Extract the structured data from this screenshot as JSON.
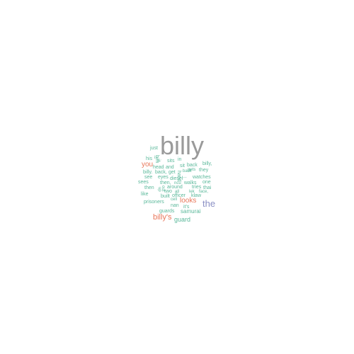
{
  "colors": {
    "gray": "#9a9a9a",
    "orange": "#e8775a",
    "purple": "#8a8fc4",
    "green": "#5ab89a"
  },
  "words": [
    {
      "text": "billy",
      "color": "gray"
    },
    {
      "text": "the",
      "color": "purple"
    },
    {
      "text": "billy's",
      "color": "orange"
    },
    {
      "text": "looks",
      "color": "orange"
    },
    {
      "text": "you",
      "color": "orange"
    },
    {
      "text": "guard",
      "color": "green"
    },
    {
      "text": "just",
      "color": "green"
    },
    {
      "text": "him",
      "color": "green"
    },
    {
      "text": "his",
      "color": "green"
    },
    {
      "text": "it",
      "color": "green"
    },
    {
      "text": "sits",
      "color": "green"
    },
    {
      "text": "in",
      "color": "green"
    },
    {
      "text": "head",
      "color": "green"
    },
    {
      "text": "and",
      "color": "green"
    },
    {
      "text": "sit",
      "color": "green"
    },
    {
      "text": "back",
      "color": "green"
    },
    {
      "text": "billy,",
      "color": "green"
    },
    {
      "text": "they",
      "color": "green"
    },
    {
      "text": "billy.",
      "color": "green"
    },
    {
      "text": "back,",
      "color": "green"
    },
    {
      "text": "gets",
      "color": "green"
    },
    {
      "text": "get",
      "color": "green"
    },
    {
      "text": "see",
      "color": "green"
    },
    {
      "text": "eyes",
      "color": "green"
    },
    {
      "text": "hand",
      "color": "green"
    },
    {
      "text": "diesel",
      "color": "green"
    },
    {
      "text": "...",
      "color": "green"
    },
    {
      "text": "watches",
      "color": "green"
    },
    {
      "text": "sees",
      "color": "green"
    },
    {
      "text": "then,",
      "color": "green"
    },
    {
      "text": "ncu",
      "color": "green"
    },
    {
      "text": "walks",
      "color": "green"
    },
    {
      "text": "one",
      "color": "green"
    },
    {
      "text": "then",
      "color": "green"
    },
    {
      "text": "around",
      "color": "green"
    },
    {
      "text": "tries",
      "color": "green"
    },
    {
      "text": "thai",
      "color": "green"
    },
    {
      "text": "like",
      "color": "green"
    },
    {
      "text": "two",
      "color": "green"
    },
    {
      "text": "all",
      "color": "green"
    },
    {
      "text": "lek",
      "color": "green"
    },
    {
      "text": "face,",
      "color": "green"
    },
    {
      "text": "built",
      "color": "green"
    },
    {
      "text": "officer",
      "color": "green"
    },
    {
      "text": "klaw",
      "color": "green"
    },
    {
      "text": "cell",
      "color": "green"
    },
    {
      "text": "prisoners",
      "color": "green"
    },
    {
      "text": "nan",
      "color": "green"
    },
    {
      "text": "it's",
      "color": "green"
    },
    {
      "text": "guards",
      "color": "green"
    },
    {
      "text": "samurai",
      "color": "green"
    },
    {
      "text": "is",
      "color": "green"
    },
    {
      "text": "back",
      "color": "green"
    },
    {
      "text": "up",
      "color": "green"
    },
    {
      "text": "out",
      "color": "green"
    }
  ]
}
